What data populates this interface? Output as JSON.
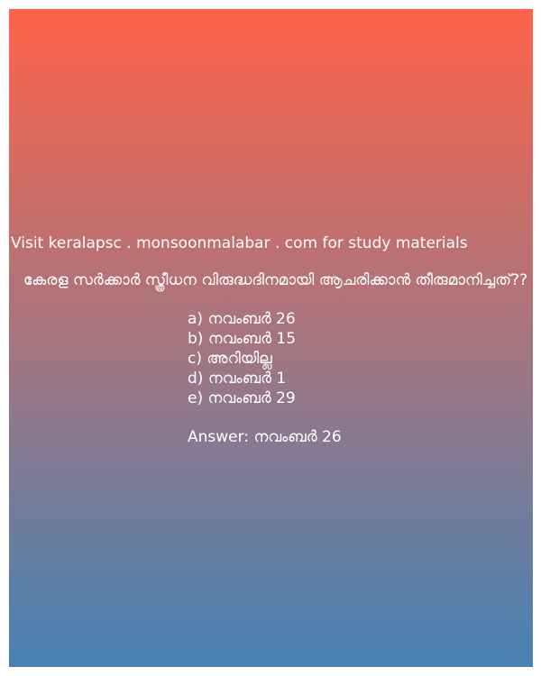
{
  "promo": {
    "text": "Visit keralapsc . monsoonmalabar . com for study materials"
  },
  "quiz": {
    "question": "കേരള സർക്കാർ സ്ത്രീധന വിരുദ്ധദിനമായി ആചരിക്കാൻ തീരുമാനിച്ചത്??",
    "options": [
      "a) നവംബർ 26",
      "b) നവംബർ 15",
      "c) അറിയില്ല",
      "d) നവംബർ 1",
      "e) നവംബർ 29"
    ],
    "answer": "Answer: നവംബർ 26"
  },
  "colors": {
    "gradient_top": "#ff634a",
    "gradient_bottom": "#4682b4",
    "text": "#ffffff"
  }
}
